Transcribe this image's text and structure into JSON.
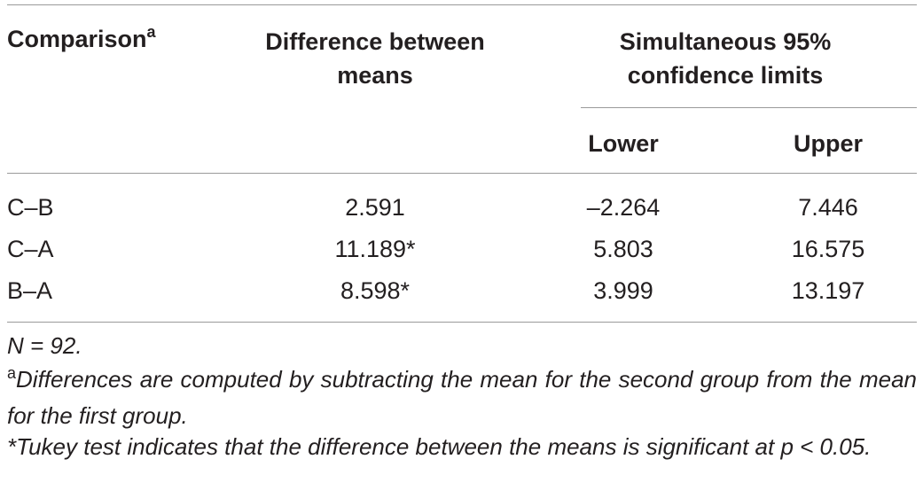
{
  "table": {
    "headers": {
      "comparison": "Comparison",
      "comparison_sup": "a",
      "difference_line1": "Difference between",
      "difference_line2": "means",
      "confidence_line1": "Simultaneous 95%",
      "confidence_line2": "confidence limits",
      "lower": "Lower",
      "upper": "Upper"
    },
    "rows": [
      {
        "comparison": "C–B",
        "difference": "2.591",
        "lower": "–2.264",
        "upper": "7.446"
      },
      {
        "comparison": "C–A",
        "difference": "11.189*",
        "lower": "5.803",
        "upper": "16.575"
      },
      {
        "comparison": "B–A",
        "difference": "8.598*",
        "lower": "3.999",
        "upper": "13.197"
      }
    ]
  },
  "notes": {
    "n": "N = 92.",
    "a_marker": "a",
    "a_text": "Differences are computed by subtracting the mean for the second group from the mean for the first group.",
    "star_text": "*Tukey test indicates that the difference between the means is significant at p < 0.05."
  }
}
